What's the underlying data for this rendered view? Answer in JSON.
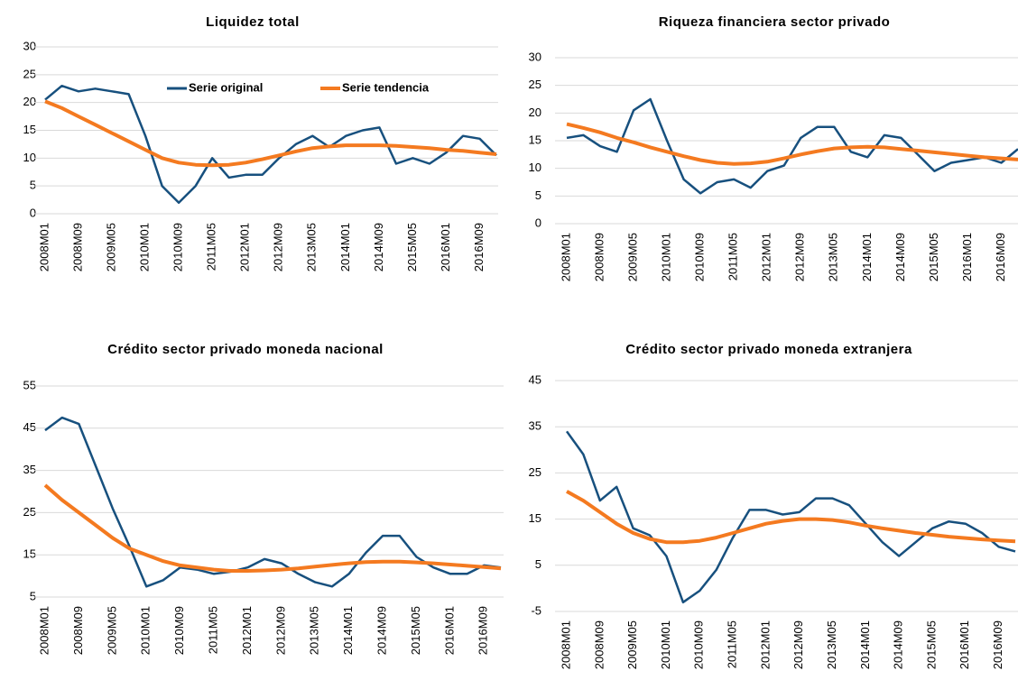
{
  "chart_data": [
    {
      "type": "line",
      "title": "Liquidez total",
      "categories": [
        "2008M01",
        null,
        "2008M09",
        null,
        "2009M05",
        null,
        "2010M01",
        null,
        "2010M09",
        null,
        "2011M05",
        null,
        "2012M01",
        null,
        "2012M09",
        null,
        "2013M05",
        null,
        "2014M01",
        null,
        "2014M09",
        null,
        "2015M05",
        null,
        "2016M01",
        null,
        "2016M09",
        null
      ],
      "series": [
        {
          "name": "Serie original",
          "color": "#17507e",
          "values": [
            20.5,
            23,
            22,
            22.5,
            22,
            21.5,
            14,
            5,
            2,
            5,
            10,
            6.5,
            7,
            7,
            10,
            12.5,
            14,
            12,
            14,
            15,
            15.5,
            9,
            10,
            9,
            11,
            14,
            13.5,
            10.5
          ]
        },
        {
          "name": "Serie tendencia",
          "color": "#f47a20",
          "values": [
            20.2,
            19,
            17.5,
            16,
            14.5,
            13,
            11.5,
            10,
            9.2,
            8.8,
            8.7,
            8.8,
            9.2,
            9.8,
            10.5,
            11.2,
            11.8,
            12.1,
            12.3,
            12.3,
            12.3,
            12.2,
            12,
            11.8,
            11.5,
            11.3,
            11,
            10.7
          ]
        }
      ],
      "ylim": [
        0,
        30
      ],
      "yticks": [
        0,
        5,
        10,
        15,
        20,
        25,
        30
      ],
      "grid": true,
      "legend": "top"
    },
    {
      "type": "line",
      "title": "Riqueza financiera sector privado",
      "categories": [
        "2008M01",
        null,
        "2008M09",
        null,
        "2009M05",
        null,
        "2010M01",
        null,
        "2010M09",
        null,
        "2011M05",
        null,
        "2012M01",
        null,
        "2012M09",
        null,
        "2013M05",
        null,
        "2014M01",
        null,
        "2014M09",
        null,
        "2015M05",
        null,
        "2016M01",
        null,
        "2016M09",
        null
      ],
      "series": [
        {
          "color": "#17507e",
          "values": [
            15.5,
            16,
            14,
            13,
            20.5,
            22.5,
            15,
            8,
            5.5,
            7.5,
            8,
            6.5,
            9.5,
            10.5,
            15.5,
            17.5,
            17.5,
            13,
            12,
            16,
            15.5,
            12.5,
            9.5,
            11,
            11.5,
            12,
            11,
            13.5
          ]
        },
        {
          "color": "#f47a20",
          "values": [
            18,
            17.3,
            16.5,
            15.5,
            14.7,
            13.8,
            13,
            12.2,
            11.5,
            11,
            10.8,
            10.9,
            11.2,
            11.8,
            12.5,
            13.1,
            13.6,
            13.8,
            13.9,
            13.8,
            13.5,
            13.2,
            12.9,
            12.6,
            12.3,
            12,
            11.8,
            11.6
          ]
        }
      ],
      "ylim": [
        0,
        30
      ],
      "yticks": [
        0,
        5,
        10,
        15,
        20,
        25,
        30
      ],
      "grid": true
    },
    {
      "type": "line",
      "title": "Crédito sector privado moneda nacional",
      "categories": [
        "2008M01",
        null,
        "2008M09",
        null,
        "2009M05",
        null,
        "2010M01",
        null,
        "2010M09",
        null,
        "2011M05",
        null,
        "2012M01",
        null,
        "2012M09",
        null,
        "2013M05",
        null,
        "2014M01",
        null,
        "2014M09",
        null,
        "2015M05",
        null,
        "2016M01",
        null,
        "2016M09",
        null
      ],
      "series": [
        {
          "color": "#17507e",
          "values": [
            44.5,
            47.5,
            46,
            36,
            26,
            17,
            7.5,
            9,
            12,
            11.5,
            10.5,
            11,
            12,
            14,
            13,
            10.5,
            8.5,
            7.5,
            10.5,
            15.5,
            19.5,
            19.5,
            14.5,
            12,
            10.5,
            10.5,
            12.5,
            12
          ]
        },
        {
          "color": "#f47a20",
          "values": [
            31.5,
            28,
            25,
            22,
            19,
            16.5,
            15,
            13.5,
            12.5,
            12,
            11.5,
            11.2,
            11.2,
            11.3,
            11.5,
            11.8,
            12.2,
            12.6,
            13,
            13.3,
            13.4,
            13.4,
            13.2,
            13,
            12.7,
            12.4,
            12.1,
            11.8
          ]
        }
      ],
      "ylim": [
        5,
        55
      ],
      "yticks": [
        5,
        15,
        25,
        35,
        45,
        55
      ],
      "grid": true
    },
    {
      "type": "line",
      "title": "Crédito sector privado moneda extranjera",
      "categories": [
        "2008M01",
        null,
        "2008M09",
        null,
        "2009M05",
        null,
        "2010M01",
        null,
        "2010M09",
        null,
        "2011M05",
        null,
        "2012M01",
        null,
        "2012M09",
        null,
        "2013M05",
        null,
        "2014M01",
        null,
        "2014M09",
        null,
        "2015M05",
        null,
        "2016M01",
        null,
        "2016M09",
        null
      ],
      "series": [
        {
          "color": "#17507e",
          "values": [
            34,
            29,
            19,
            22,
            13,
            11.5,
            7,
            -3,
            -0.5,
            4,
            11,
            17,
            17,
            16,
            16.5,
            19.5,
            19.5,
            18,
            14,
            10,
            7,
            10,
            13,
            14.5,
            14,
            12,
            9,
            8
          ]
        },
        {
          "color": "#f47a20",
          "values": [
            21,
            19,
            16.5,
            14,
            12,
            10.7,
            10,
            10,
            10.3,
            11,
            12,
            13,
            14,
            14.6,
            15,
            15,
            14.8,
            14.3,
            13.6,
            13,
            12.5,
            12,
            11.6,
            11.2,
            10.9,
            10.6,
            10.4,
            10.2
          ]
        }
      ],
      "ylim": [
        -5,
        45
      ],
      "yticks": [
        -5,
        5,
        15,
        25,
        35,
        45
      ],
      "grid": true
    }
  ]
}
